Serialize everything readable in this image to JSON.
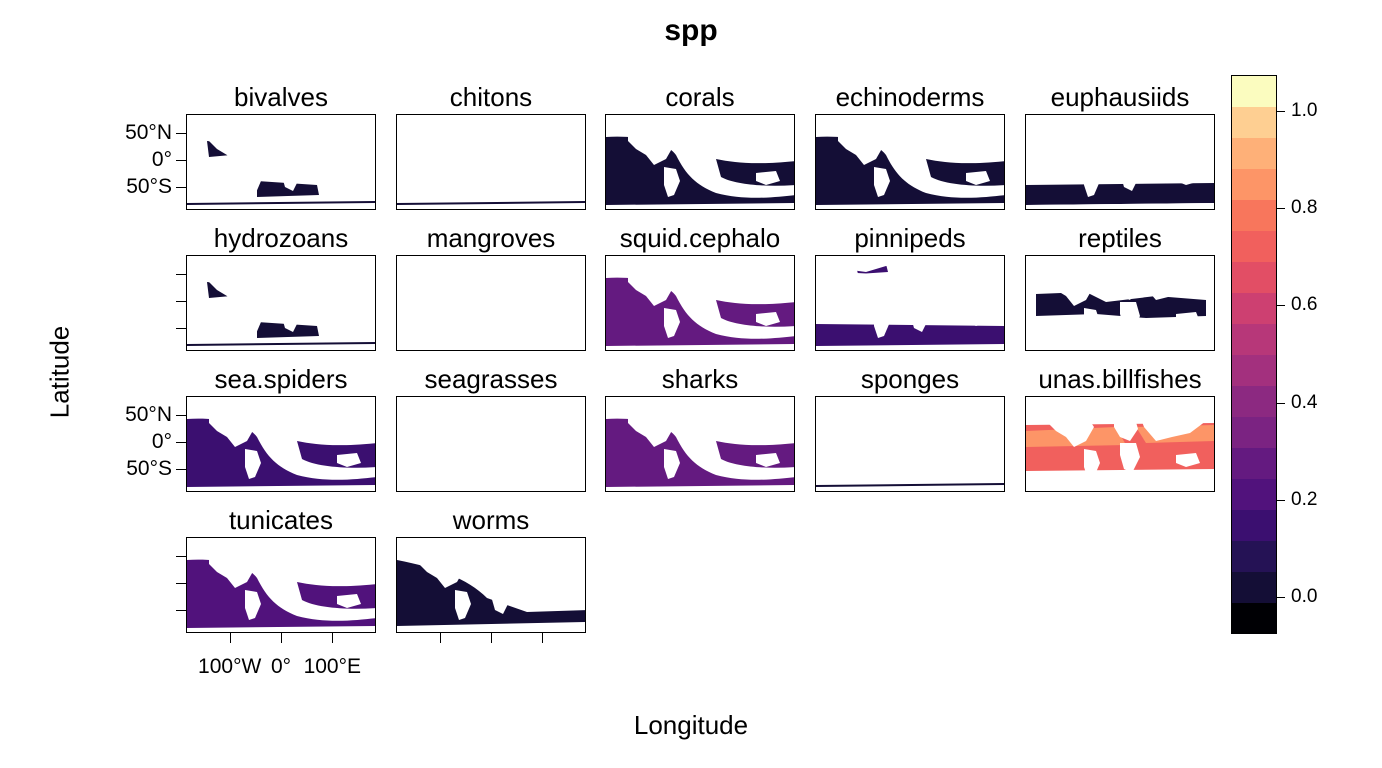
{
  "chart_data": {
    "type": "heatmap",
    "title": "spp",
    "xlabel": "Longitude",
    "ylabel": "Latitude",
    "panels": [
      {
        "name": "bivalves",
        "level": 0.0,
        "coverage": "sparse"
      },
      {
        "name": "chitons",
        "level": 0.0,
        "coverage": "very_sparse"
      },
      {
        "name": "corals",
        "level": 0.02,
        "coverage": "dense"
      },
      {
        "name": "echinoderms",
        "level": 0.02,
        "coverage": "dense"
      },
      {
        "name": "euphausiids",
        "level": 0.02,
        "coverage": "southern"
      },
      {
        "name": "hydrozoans",
        "level": 0.05,
        "coverage": "sparse"
      },
      {
        "name": "mangroves",
        "level": 0.0,
        "coverage": "none"
      },
      {
        "name": "squid.cephalo",
        "level": 0.3,
        "coverage": "dense"
      },
      {
        "name": "pinnipeds",
        "level": 0.15,
        "coverage": "polar"
      },
      {
        "name": "reptiles",
        "level": 0.03,
        "coverage": "tropical"
      },
      {
        "name": "sea.spiders",
        "level": 0.15,
        "coverage": "dense"
      },
      {
        "name": "seagrasses",
        "level": 0.0,
        "coverage": "none"
      },
      {
        "name": "sharks",
        "level": 0.25,
        "coverage": "dense"
      },
      {
        "name": "sponges",
        "level": 0.03,
        "coverage": "very_sparse"
      },
      {
        "name": "unas.billfishes",
        "level": 0.75,
        "coverage": "tuna"
      },
      {
        "name": "tunicates",
        "level": 0.2,
        "coverage": "dense"
      },
      {
        "name": "worms",
        "level": 0.05,
        "coverage": "moderate"
      }
    ],
    "y_ticks": [
      "50°N",
      "0°",
      "50°S"
    ],
    "x_ticks": [
      "100°W",
      "0°",
      "100°E"
    ],
    "colorbar": {
      "range": [
        -0.075,
        1.075
      ],
      "ticks": [
        0.0,
        0.2,
        0.4,
        0.6,
        0.8,
        1.0
      ],
      "tick_labels": [
        "0.0",
        "0.2",
        "0.4",
        "0.6",
        "0.8",
        "1.0"
      ],
      "colors": [
        "#000004",
        "#140e36",
        "#251255",
        "#3b0f70",
        "#51127c",
        "#641a80",
        "#7b2382",
        "#8c2981",
        "#a3307e",
        "#b73779",
        "#cd4071",
        "#e24e65",
        "#f1605d",
        "#f8765c",
        "#fd9567",
        "#feb078",
        "#fecf92",
        "#fbfcbf"
      ]
    }
  }
}
